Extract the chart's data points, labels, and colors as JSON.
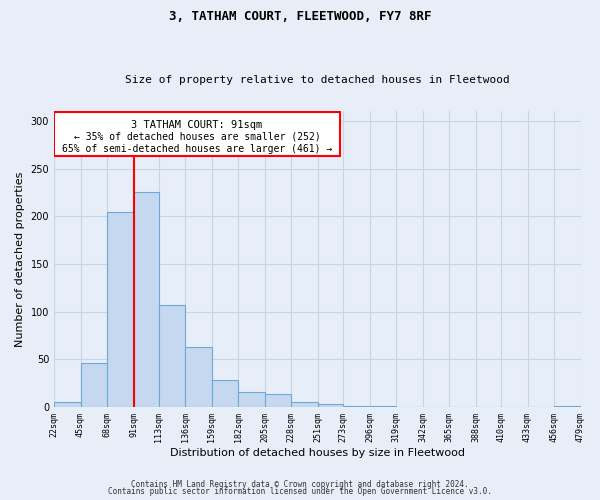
{
  "title": "3, TATHAM COURT, FLEETWOOD, FY7 8RF",
  "subtitle": "Size of property relative to detached houses in Fleetwood",
  "xlabel": "Distribution of detached houses by size in Fleetwood",
  "ylabel": "Number of detached properties",
  "bar_values": [
    5,
    46,
    204,
    225,
    107,
    63,
    28,
    16,
    14,
    5,
    3,
    1,
    1,
    0,
    0,
    0,
    0,
    0,
    0,
    1
  ],
  "x_tick_labels": [
    "22sqm",
    "45sqm",
    "68sqm",
    "91sqm",
    "113sqm",
    "136sqm",
    "159sqm",
    "182sqm",
    "205sqm",
    "228sqm",
    "251sqm",
    "273sqm",
    "296sqm",
    "319sqm",
    "342sqm",
    "365sqm",
    "388sqm",
    "410sqm",
    "433sqm",
    "456sqm",
    "479sqm"
  ],
  "bar_color": "#c5d8f0",
  "bar_edge_color": "#6aaad4",
  "ylim": [
    0,
    310
  ],
  "yticks": [
    0,
    50,
    100,
    150,
    200,
    250,
    300
  ],
  "property_line_x": 91,
  "annotation_title": "3 TATHAM COURT: 91sqm",
  "annotation_line1": "← 35% of detached houses are smaller (252)",
  "annotation_line2": "65% of semi-detached houses are larger (461) →",
  "footer_line1": "Contains HM Land Registry data © Crown copyright and database right 2024.",
  "footer_line2": "Contains public sector information licensed under the Open Government Licence v3.0.",
  "background_color": "#e8eef8",
  "grid_color": "#c8d4e8"
}
